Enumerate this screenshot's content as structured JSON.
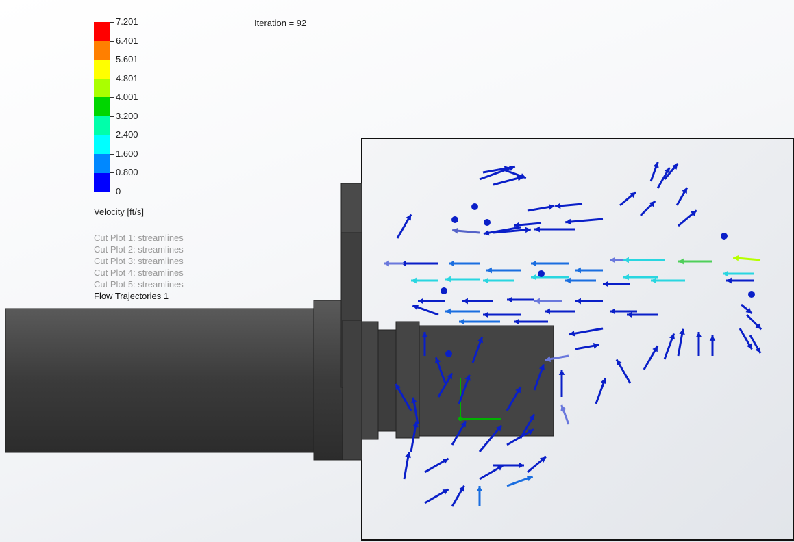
{
  "legend": {
    "ticks": [
      "7.201",
      "6.401",
      "5.601",
      "4.801",
      "4.001",
      "3.200",
      "2.400",
      "1.600",
      "0.800",
      "0"
    ],
    "colors": [
      "#ff0000",
      "#ff7f00",
      "#ffff00",
      "#aaff00",
      "#00d600",
      "#00ffaa",
      "#00ffff",
      "#0088ff",
      "#0000ff"
    ],
    "units": "Velocity [ft/s]"
  },
  "plots": [
    {
      "label": "Cut Plot 1: streamlines",
      "active": false
    },
    {
      "label": "Cut Plot 2: streamlines",
      "active": false
    },
    {
      "label": "Cut Plot 3: streamlines",
      "active": false
    },
    {
      "label": "Cut Plot 4: streamlines",
      "active": false
    },
    {
      "label": "Cut Plot 5: streamlines",
      "active": false
    },
    {
      "label": "Flow Trajectories 1",
      "active": true
    }
  ],
  "iteration": "Iteration = 92",
  "colors": {
    "geometry": "#444444",
    "domain_fill": "#eef0f3",
    "slow": "#0a1fc8",
    "medium": "#1a6ee0",
    "fast": "#29d6e0",
    "fastest": "#b6ff00"
  }
}
